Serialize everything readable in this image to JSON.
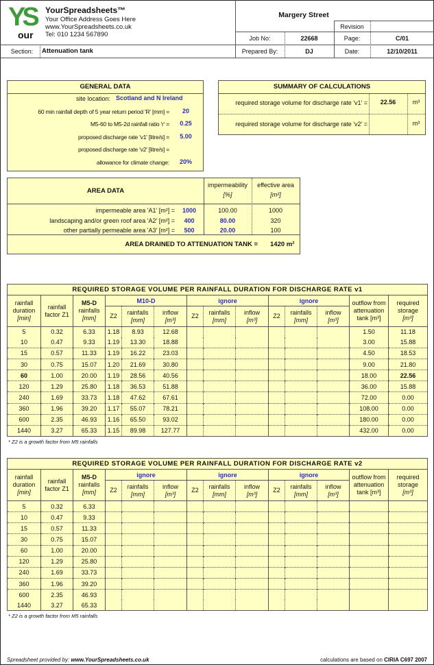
{
  "company": {
    "name": "YourSpreadsheets™",
    "address": "Your Office Address Goes Here",
    "website": "www.YourSpreadsheets.co.uk",
    "tel": "Tel: 010 1234 567890",
    "logo_text": "YS our spreadsheets"
  },
  "project": {
    "title": "Margery Street",
    "revision_label": "Revision",
    "revision_value": "",
    "job_no_label": "Job No:",
    "job_no": "22668",
    "page_label": "Page:",
    "page": "C/01",
    "section_label": "Section:",
    "section": "Attenuation tank",
    "prepared_by_label": "Prepared By:",
    "prepared_by": "DJ",
    "date_label": "Date:",
    "date": "12/10/2011"
  },
  "general": {
    "title": "GENERAL DATA",
    "rows": [
      {
        "label": "site location:",
        "value": "Scotland and N Ireland"
      },
      {
        "label": "60 min rainfall depth of 5 year return period 'R' [mm] =",
        "value": "20"
      },
      {
        "label": "M5-60 to M5-2d rainfall ratio 'r' =",
        "value": "0.25"
      },
      {
        "label": "proposed discharge rate 'v1' [litre/s] =",
        "value": "5.00"
      },
      {
        "label": "proposed discharge rate 'v2' [litre/s] =",
        "value": ""
      },
      {
        "label": "allowance for climate change:",
        "value": "20%"
      }
    ]
  },
  "summary": {
    "title": "SUMMARY OF CALCULATIONS",
    "rows": [
      {
        "label": "required storage volume for discharge rate 'v1' =",
        "value": "22.56",
        "unit": "m³"
      },
      {
        "label": "required storage volume for discharge rate 'v2' =",
        "value": "",
        "unit": "m³"
      }
    ]
  },
  "area": {
    "title": "AREA DATA",
    "col_imperm": "impermeability",
    "col_imperm_unit": "[%]",
    "col_eff": "effective area",
    "col_eff_unit": "[m²]",
    "rows": [
      {
        "label": "impermeable area 'A1' [m²] =",
        "value": "1000",
        "imperm": "100.00",
        "eff": "1000"
      },
      {
        "label": "landscaping and/or green roof area 'A2' [m²] =",
        "value": "400",
        "imperm": "80.00",
        "eff": "320"
      },
      {
        "label": "other partially permeable area 'A3' [m²] =",
        "value": "500",
        "imperm": "20.00",
        "eff": "100"
      }
    ],
    "total_label": "AREA DRAINED TO ATTENUATION TANK =",
    "total_value": "1420 m²"
  },
  "headers": {
    "duration": [
      "rainfall",
      "duration",
      "[min]"
    ],
    "factor": [
      "rainfall",
      "factor Z1"
    ],
    "m5d": [
      "M5-D",
      "rainfalls",
      "[mm]"
    ],
    "z2": "Z2",
    "rainfalls": [
      "rainfalls",
      "[mm]"
    ],
    "inflow": [
      "inflow",
      "[m³]"
    ],
    "outflow": [
      "outflow from",
      "attenuation",
      "tank [m³]"
    ],
    "storage": [
      "required",
      "storage",
      "[m³]"
    ]
  },
  "table1": {
    "title": "REQUIRED STORAGE VOLUME PER RAINFALL DURATION  FOR DISCHARGE RATE v1",
    "groups": [
      "M10-D",
      "ignore",
      "ignore"
    ],
    "rows": [
      [
        "5",
        "0.32",
        "6.33",
        "1.18",
        "8.93",
        "12.68",
        "",
        "",
        "",
        "",
        "",
        "",
        "1.50",
        "11.18"
      ],
      [
        "10",
        "0.47",
        "9.33",
        "1.19",
        "13.30",
        "18.88",
        "",
        "",
        "",
        "",
        "",
        "",
        "3.00",
        "15.88"
      ],
      [
        "15",
        "0.57",
        "11.33",
        "1.19",
        "16.22",
        "23.03",
        "",
        "",
        "",
        "",
        "",
        "",
        "4.50",
        "18.53"
      ],
      [
        "30",
        "0.75",
        "15.07",
        "1.20",
        "21.69",
        "30.80",
        "",
        "",
        "",
        "",
        "",
        "",
        "9.00",
        "21.80"
      ],
      [
        "60",
        "1.00",
        "20.00",
        "1.19",
        "28.56",
        "40.56",
        "",
        "",
        "",
        "",
        "",
        "",
        "18.00",
        "22.56"
      ],
      [
        "120",
        "1.29",
        "25.80",
        "1.18",
        "36.53",
        "51.88",
        "",
        "",
        "",
        "",
        "",
        "",
        "36.00",
        "15.88"
      ],
      [
        "240",
        "1.69",
        "33.73",
        "1.18",
        "47.62",
        "67.61",
        "",
        "",
        "",
        "",
        "",
        "",
        "72.00",
        "0.00"
      ],
      [
        "360",
        "1.96",
        "39.20",
        "1.17",
        "55.07",
        "78.21",
        "",
        "",
        "",
        "",
        "",
        "",
        "108.00",
        "0.00"
      ],
      [
        "600",
        "2.35",
        "46.93",
        "1.16",
        "65.50",
        "93.02",
        "",
        "",
        "",
        "",
        "",
        "",
        "180.00",
        "0.00"
      ],
      [
        "1440",
        "3.27",
        "65.33",
        "1.15",
        "89.98",
        "127.77",
        "",
        "",
        "",
        "",
        "",
        "",
        "432.00",
        "0.00"
      ]
    ],
    "critical_row": 4,
    "footnote": "* Z2 is a growth factor from M5 rainfalls"
  },
  "table2": {
    "title": "REQUIRED STORAGE VOLUME PER RAINFALL DURATION  FOR DISCHARGE RATE v2",
    "groups": [
      "ignore",
      "ignore",
      "ignore"
    ],
    "rows": [
      [
        "5",
        "0.32",
        "6.33",
        "",
        "",
        "",
        "",
        "",
        "",
        "",
        "",
        "",
        "",
        ""
      ],
      [
        "10",
        "0.47",
        "9.33",
        "",
        "",
        "",
        "",
        "",
        "",
        "",
        "",
        "",
        "",
        ""
      ],
      [
        "15",
        "0.57",
        "11.33",
        "",
        "",
        "",
        "",
        "",
        "",
        "",
        "",
        "",
        "",
        ""
      ],
      [
        "30",
        "0.75",
        "15.07",
        "",
        "",
        "",
        "",
        "",
        "",
        "",
        "",
        "",
        "",
        ""
      ],
      [
        "60",
        "1.00",
        "20.00",
        "",
        "",
        "",
        "",
        "",
        "",
        "",
        "",
        "",
        "",
        ""
      ],
      [
        "120",
        "1.29",
        "25.80",
        "",
        "",
        "",
        "",
        "",
        "",
        "",
        "",
        "",
        "",
        ""
      ],
      [
        "240",
        "1.69",
        "33.73",
        "",
        "",
        "",
        "",
        "",
        "",
        "",
        "",
        "",
        "",
        ""
      ],
      [
        "360",
        "1.96",
        "39.20",
        "",
        "",
        "",
        "",
        "",
        "",
        "",
        "",
        "",
        "",
        ""
      ],
      [
        "600",
        "2.35",
        "46.93",
        "",
        "",
        "",
        "",
        "",
        "",
        "",
        "",
        "",
        "",
        ""
      ],
      [
        "1440",
        "3.27",
        "65.33",
        "",
        "",
        "",
        "",
        "",
        "",
        "",
        "",
        "",
        "",
        ""
      ]
    ],
    "footnote": "* Z2 is a growth factor from M5 rainfalls"
  },
  "footer": {
    "left_label": "Spreadsheet provided by:",
    "left_link": "www.YourSpreadsheets.co.uk",
    "right_label": "calculations are based on",
    "right_ref": "CIRIA C697 2007"
  },
  "colors": {
    "panel": "#ffffc4",
    "input_blue": "#2b2bb8",
    "logo_green": "#3e9a3a"
  }
}
